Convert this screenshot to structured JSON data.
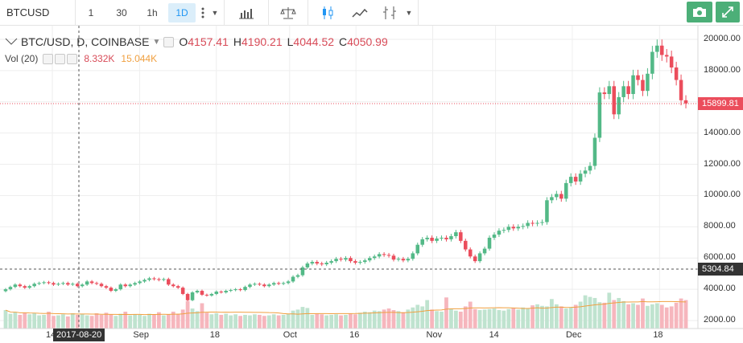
{
  "toolbar": {
    "symbol": "BTCUSD",
    "intervals": [
      {
        "label": "1",
        "active": false
      },
      {
        "label": "30",
        "active": false
      },
      {
        "label": "1h",
        "active": false
      },
      {
        "label": "1D",
        "active": true
      }
    ],
    "icons": [
      "vertical-dots-icon",
      "caret-down-icon",
      "bar-chart-icon",
      "scale-icon",
      "candlestick-icon",
      "area-chart-icon",
      "indicators-icon",
      "caret-down-icon",
      "camera-icon",
      "fullscreen-icon"
    ]
  },
  "legend": {
    "symbol_label": "BTC/USD, D, COINBASE",
    "open_key": "O",
    "open": "4157.41",
    "high_key": "H",
    "high": "4190.21",
    "low_key": "L",
    "low": "4044.52",
    "close_key": "C",
    "close": "4050.99"
  },
  "volume_legend": {
    "label": "Vol (20)",
    "value1": "8.332K",
    "value2": "15.044K"
  },
  "price_axis": {
    "ticks": [
      "20000.00",
      "18000.00",
      "16000.00",
      "14000.00",
      "12000.00",
      "10000.00",
      "8000.00",
      "6000.00",
      "4000.00",
      "2000.00"
    ],
    "current_price": "15899.81",
    "crosshair_price": "5304.84"
  },
  "time_axis": {
    "ticks": [
      "14",
      "Sep",
      "18",
      "Oct",
      "16",
      "Nov",
      "14",
      "Dec",
      "18"
    ],
    "crosshair_date": "2017-08-20"
  },
  "colors": {
    "up": "#53b987",
    "down": "#eb4d5c",
    "vol_up": "#bfe3cf",
    "vol_down": "#f6b6bd",
    "ma": "#f0a040",
    "grid": "#eeeeee",
    "accent": "#2196f3"
  },
  "chart_data": {
    "type": "candlestick",
    "title": "BTC/USD, D, COINBASE",
    "xlabel": "",
    "ylabel": "",
    "ylim": [
      2000,
      20000
    ],
    "close_series": [
      4000,
      4150,
      4300,
      4200,
      4100,
      4200,
      4350,
      4400,
      4450,
      4400,
      4300,
      4350,
      4400,
      4300,
      4350,
      4200,
      4300,
      4500,
      4400,
      4350,
      4200,
      4100,
      3900,
      4000,
      4300,
      4200,
      4300,
      4400,
      4500,
      4600,
      4700,
      4650,
      4600,
      4650,
      4300,
      4200,
      4100,
      3700,
      3300,
      3800,
      3900,
      3650,
      3600,
      3700,
      3850,
      3800,
      3900,
      3950,
      4000,
      3950,
      4150,
      4300,
      4350,
      4300,
      4200,
      4300,
      4400,
      4350,
      4400,
      4500,
      4800,
      4900,
      5400,
      5650,
      5750,
      5650,
      5600,
      5700,
      5800,
      5950,
      5900,
      6000,
      5800,
      5700,
      5750,
      5850,
      6000,
      6100,
      6250,
      6200,
      6150,
      5900,
      5950,
      5850,
      5950,
      6300,
      6850,
      7200,
      7300,
      7100,
      7250,
      7300,
      7200,
      7400,
      7650,
      7100,
      6550,
      6100,
      5800,
      6300,
      6600,
      7300,
      7500,
      7750,
      7800,
      8000,
      7900,
      8000,
      8050,
      8250,
      8200,
      8250,
      8300,
      9700,
      9900,
      10100,
      9800,
      10800,
      11200,
      10900,
      11400,
      11600,
      11900,
      13700,
      16600,
      16500,
      17000,
      15200,
      16300,
      17000,
      16500,
      17700,
      17400,
      16700,
      17800,
      19200,
      19600,
      19000,
      18900,
      18200,
      17400,
      16100,
      15900
    ],
    "volume_series": [
      3500,
      2800,
      3100,
      2600,
      3000,
      2700,
      2900,
      2500,
      2600,
      3200,
      2400,
      2500,
      2700,
      2300,
      2900,
      2600,
      2800,
      2500,
      2400,
      2900,
      2600,
      3000,
      2700,
      2400,
      2800,
      3200,
      2500,
      2700,
      2600,
      2400,
      2800,
      2600,
      3100,
      2500,
      2700,
      3200,
      2800,
      3600,
      5200,
      3800,
      3300,
      4800,
      3000,
      2700,
      2900,
      2600,
      2800,
      2500,
      2700,
      2400,
      2600,
      2500,
      2700,
      2600,
      2400,
      2500,
      2700,
      2500,
      2600,
      2800,
      3400,
      3600,
      4100,
      3900,
      2600,
      2800,
      2700,
      2500,
      2600,
      2700,
      2500,
      2600,
      2800,
      2700,
      3000,
      3200,
      3100,
      3400,
      3300,
      3600,
      3800,
      3500,
      3300,
      3100,
      3600,
      4000,
      4500,
      4200,
      5400,
      3600,
      3300,
      3200,
      5900,
      3800,
      3400,
      3200,
      4200,
      5100,
      3700,
      3500,
      3600,
      3700,
      3800,
      3500,
      3400,
      3700,
      3900,
      3600,
      4000,
      3800,
      4400,
      4600,
      4300,
      4200,
      5600,
      4600,
      4200,
      3800,
      4000,
      4500,
      5100,
      6300,
      6000,
      5800,
      5000,
      4900,
      6800,
      5400,
      5800,
      5200,
      4600,
      4800,
      4500,
      5700,
      4300,
      4600,
      4800,
      4500,
      4000,
      4200,
      4900,
      5700,
      5400
    ]
  }
}
